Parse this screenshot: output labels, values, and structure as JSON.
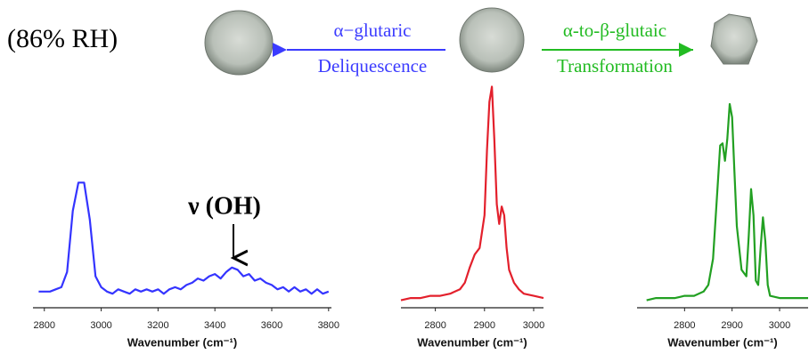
{
  "condition": "(86% RH)",
  "arrows": [
    {
      "top": "α−glutaric",
      "bottom": "Deliquescence",
      "color": "#3b3bff"
    },
    {
      "top": "α-to-β-glutaic",
      "bottom": "Transformation",
      "color": "#22bb22"
    }
  ],
  "chart_data": [
    {
      "type": "line",
      "annotation": "ν (OH)",
      "xlabel": "Wavenumber (cm⁻¹)",
      "color": "#3434ff",
      "xlim": [
        2760,
        3810
      ],
      "ylim": [
        0,
        100
      ],
      "xticks": [
        2800,
        3000,
        3200,
        3400,
        3600,
        3800
      ],
      "x": [
        2780,
        2800,
        2820,
        2840,
        2860,
        2880,
        2900,
        2920,
        2940,
        2960,
        2980,
        3000,
        3020,
        3040,
        3060,
        3080,
        3100,
        3120,
        3140,
        3160,
        3180,
        3200,
        3220,
        3240,
        3260,
        3280,
        3300,
        3320,
        3340,
        3360,
        3380,
        3400,
        3420,
        3440,
        3460,
        3480,
        3500,
        3520,
        3540,
        3560,
        3580,
        3600,
        3620,
        3640,
        3660,
        3680,
        3700,
        3720,
        3740,
        3760,
        3780,
        3800
      ],
      "values": [
        5,
        5,
        5,
        6,
        7,
        14,
        42,
        55,
        55,
        38,
        12,
        7,
        5,
        4,
        6,
        5,
        4,
        6,
        5,
        6,
        5,
        6,
        4,
        6,
        7,
        6,
        8,
        9,
        11,
        10,
        12,
        13,
        11,
        14,
        16,
        15,
        12,
        13,
        10,
        11,
        9,
        8,
        6,
        7,
        5,
        7,
        5,
        6,
        4,
        6,
        4,
        5
      ]
    },
    {
      "type": "line",
      "xlabel": "Wavenumber (cm⁻¹)",
      "color": "#e3202c",
      "xlim": [
        2730,
        3020
      ],
      "ylim": [
        0,
        100
      ],
      "xticks": [
        2800,
        2900,
        3000
      ],
      "x": [
        2730,
        2750,
        2770,
        2790,
        2810,
        2830,
        2850,
        2860,
        2870,
        2880,
        2890,
        2900,
        2905,
        2910,
        2915,
        2920,
        2925,
        2930,
        2935,
        2940,
        2945,
        2950,
        2960,
        2970,
        2980,
        3000,
        3020
      ],
      "values": [
        1,
        2,
        2,
        3,
        3,
        4,
        6,
        9,
        16,
        22,
        25,
        40,
        70,
        92,
        99,
        75,
        45,
        36,
        44,
        40,
        25,
        15,
        9,
        6,
        4,
        3,
        2
      ]
    },
    {
      "type": "line",
      "xlabel": "Wavenumber (cm⁻¹)",
      "color": "#22a022",
      "xlim": [
        2700,
        3060
      ],
      "ylim": [
        0,
        100
      ],
      "xticks": [
        2800,
        2900,
        3000
      ],
      "x": [
        2720,
        2740,
        2760,
        2780,
        2800,
        2820,
        2840,
        2850,
        2860,
        2870,
        2875,
        2880,
        2885,
        2890,
        2895,
        2900,
        2905,
        2910,
        2920,
        2930,
        2935,
        2940,
        2945,
        2950,
        2955,
        2960,
        2965,
        2970,
        2975,
        2980,
        3000,
        3020,
        3040,
        3060
      ],
      "values": [
        1,
        2,
        2,
        2,
        3,
        3,
        5,
        8,
        20,
        55,
        72,
        73,
        65,
        75,
        91,
        85,
        60,
        35,
        15,
        12,
        30,
        52,
        40,
        10,
        8,
        25,
        39,
        28,
        8,
        3,
        2,
        2,
        2,
        2
      ]
    }
  ]
}
